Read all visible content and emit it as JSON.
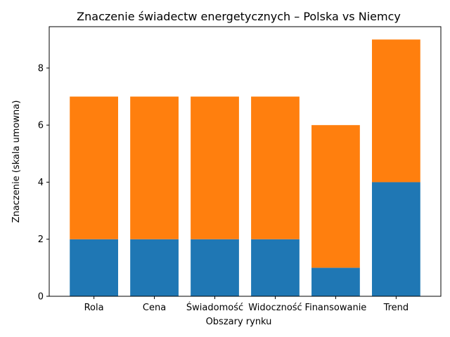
{
  "chart_data": {
    "type": "bar",
    "stacked": true,
    "title": "Znaczenie świadectw energetycznych – Polska vs Niemcy",
    "xlabel": "Obszary rynku",
    "ylabel": "Znaczenie (skala umowna)",
    "categories": [
      "Rola",
      "Cena",
      "Świadomość",
      "Widoczność",
      "Finansowanie",
      "Trend"
    ],
    "series": [
      {
        "color": "#1f77b4",
        "values": [
          2,
          2,
          2,
          2,
          1,
          4
        ]
      },
      {
        "color": "#ff7f0e",
        "values": [
          5,
          5,
          5,
          5,
          5,
          5
        ]
      }
    ],
    "ylim": [
      0,
      9.45
    ],
    "yticks": [
      0,
      2,
      4,
      6,
      8
    ],
    "grid": false,
    "legend": "none"
  }
}
